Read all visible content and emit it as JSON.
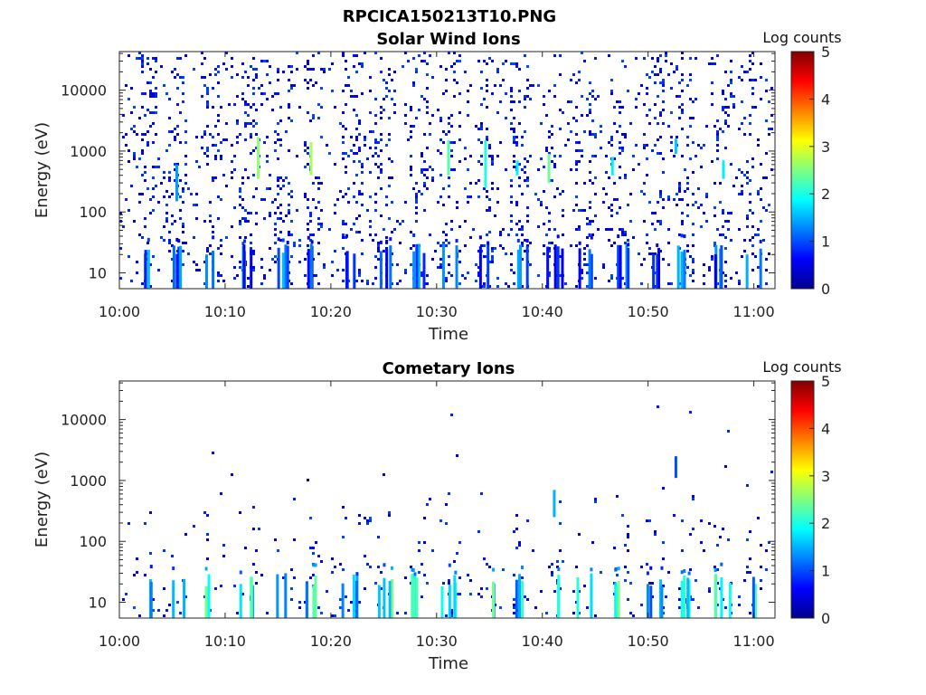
{
  "figure": {
    "title": "RPCICA150213T10.PNG"
  },
  "chart_data": [
    {
      "type": "heatmap",
      "title": "Solar Wind Ions",
      "xlabel": "Time",
      "ylabel": "Energy (eV)",
      "x_ticks": [
        "10:00",
        "10:10",
        "10:20",
        "10:30",
        "10:40",
        "10:50",
        "11:00"
      ],
      "x_range": [
        "10:00",
        "11:02"
      ],
      "y_scale": "log",
      "y_ticks": [
        10,
        100,
        1000,
        10000
      ],
      "y_range": [
        5.5,
        43000
      ],
      "colorbar": {
        "label": "Log counts",
        "ticks": [
          0,
          1,
          2,
          3,
          4,
          5
        ],
        "range": [
          0,
          5
        ],
        "colormap": "jet"
      },
      "bright_patches": [
        {
          "time_min": 5.3,
          "e_lo": 150,
          "e_hi": 600,
          "level": 1.4
        },
        {
          "time_min": 13.0,
          "e_lo": 350,
          "e_hi": 1700,
          "level": 2.6
        },
        {
          "time_min": 18.0,
          "e_lo": 400,
          "e_hi": 1400,
          "level": 2.7
        },
        {
          "time_min": 31.0,
          "e_lo": 400,
          "e_hi": 1500,
          "level": 2.3
        },
        {
          "time_min": 34.5,
          "e_lo": 250,
          "e_hi": 1500,
          "level": 2.0
        },
        {
          "time_min": 37.5,
          "e_lo": 400,
          "e_hi": 700,
          "level": 1.8
        },
        {
          "time_min": 40.5,
          "e_lo": 300,
          "e_hi": 900,
          "level": 2.4
        },
        {
          "time_min": 46.5,
          "e_lo": 400,
          "e_hi": 800,
          "level": 1.8
        },
        {
          "time_min": 52.5,
          "e_lo": 900,
          "e_hi": 1600,
          "level": 1.6
        },
        {
          "time_min": 57.0,
          "e_lo": 350,
          "e_hi": 700,
          "level": 1.8
        }
      ]
    },
    {
      "type": "heatmap",
      "title": "Cometary Ions",
      "xlabel": "Time",
      "ylabel": "Energy (eV)",
      "x_ticks": [
        "10:00",
        "10:10",
        "10:20",
        "10:30",
        "10:40",
        "10:50",
        "11:00"
      ],
      "x_range": [
        "10:00",
        "11:02"
      ],
      "y_scale": "log",
      "y_ticks": [
        10,
        100,
        1000,
        10000
      ],
      "y_range": [
        5.5,
        43000
      ],
      "colorbar": {
        "label": "Log counts",
        "ticks": [
          0,
          1,
          2,
          3,
          4,
          5
        ],
        "range": [
          0,
          5
        ],
        "colormap": "jet"
      },
      "low_energy_bursts_min": [
        2.2,
        5.5,
        8.8,
        12.0,
        15.3,
        18.3,
        21.8,
        25.0,
        28.2,
        31.2,
        34.5,
        37.8,
        41.0,
        44.0,
        47.2,
        50.5,
        53.5,
        57.0,
        60.0
      ],
      "bright_patches": [
        {
          "time_min": 41.0,
          "e_lo": 250,
          "e_hi": 700,
          "level": 1.5
        },
        {
          "time_min": 52.5,
          "e_lo": 1100,
          "e_hi": 2500,
          "level": 1.0
        }
      ]
    }
  ]
}
